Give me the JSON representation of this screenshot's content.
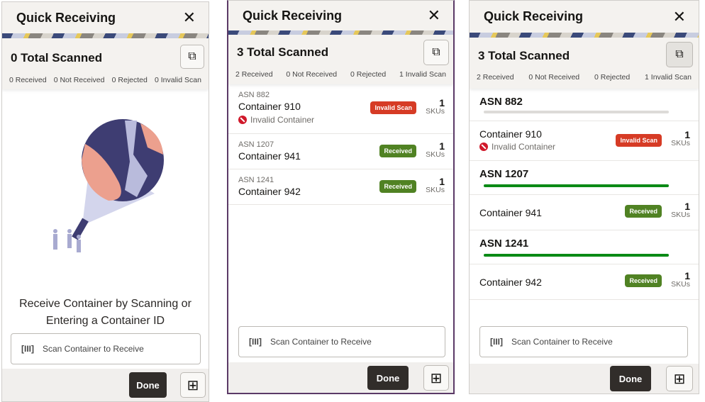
{
  "title": "Quick Receiving",
  "scan_placeholder": "Scan Container to Receive",
  "done_label": "Done",
  "empty_message_1": "Receive Container by Scanning or",
  "empty_message_2": "Entering a Container ID",
  "colors": {
    "invalid": "#d63b25",
    "received": "#508223",
    "progress_done": "#0b8a16",
    "progress_empty": "#dddbd8"
  },
  "panels": [
    {
      "total": "0 Total Scanned",
      "counts": [
        "0 Received",
        "0 Not Received",
        "0 Rejected",
        "0 Invalid Scan"
      ]
    },
    {
      "total": "3 Total Scanned",
      "counts": [
        "2 Received",
        "0 Not Received",
        "0 Rejected",
        "1 Invalid Scan"
      ],
      "rows": [
        {
          "asn": "ASN 882",
          "container": "Container 910",
          "badge": "Invalid Scan",
          "status": "invalid",
          "error": "Invalid Container",
          "skus": "1",
          "sku_label": "SKUs"
        },
        {
          "asn": "ASN 1207",
          "container": "Container 941",
          "badge": "Received",
          "status": "received",
          "skus": "1",
          "sku_label": "SKUs"
        },
        {
          "asn": "ASN 1241",
          "container": "Container 942",
          "badge": "Received",
          "status": "received",
          "skus": "1",
          "sku_label": "SKUs"
        }
      ]
    },
    {
      "total": "3 Total Scanned",
      "counts": [
        "2 Received",
        "0 Not Received",
        "0 Rejected",
        "1 Invalid Scan"
      ],
      "groups": [
        {
          "asn": "ASN 882",
          "progress": 0,
          "container": "Container 910",
          "badge": "Invalid Scan",
          "status": "invalid",
          "error": "Invalid Container",
          "skus": "1",
          "sku_label": "SKUs"
        },
        {
          "asn": "ASN 1207",
          "progress": 100,
          "container": "Container 941",
          "badge": "Received",
          "status": "received",
          "skus": "1",
          "sku_label": "SKUs"
        },
        {
          "asn": "ASN 1241",
          "progress": 100,
          "container": "Container 942",
          "badge": "Received",
          "status": "received",
          "skus": "1",
          "sku_label": "SKUs"
        }
      ]
    }
  ]
}
